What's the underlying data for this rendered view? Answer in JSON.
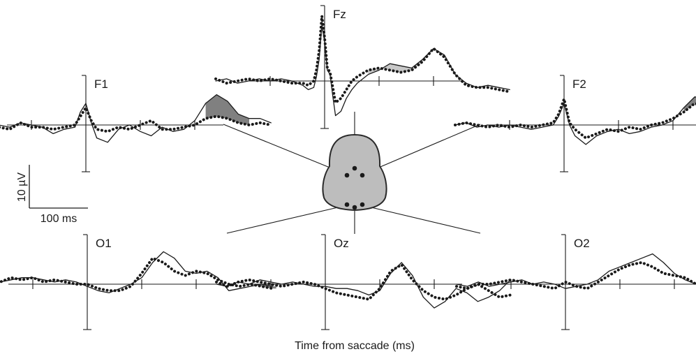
{
  "chart_data": {
    "type": "line",
    "xlabel": "Time from saccade (ms)",
    "scale_bar": {
      "y_label": "10 µV",
      "x_label": "100 ms",
      "y_value_uV": 10,
      "x_value_ms": 100
    },
    "x_range_ms": [
      -200,
      350
    ],
    "tick_ms": [
      -100,
      100,
      200
    ],
    "colors": {
      "line": "#1a1a1a",
      "fill_light": "#c8c8c8",
      "fill_dark": "#808080",
      "head": "#bdbdbd"
    },
    "series_styles": [
      "solid",
      "dotted"
    ],
    "panels": [
      {
        "name": "Fz",
        "fill": "light",
        "shade_range": [
          80,
          220
        ],
        "x": [
          -200,
          -180,
          -160,
          -140,
          -120,
          -100,
          -80,
          -60,
          -40,
          -30,
          -20,
          -15,
          -10,
          -5,
          0,
          5,
          10,
          15,
          20,
          30,
          40,
          50,
          60,
          80,
          100,
          120,
          140,
          160,
          180,
          200,
          220,
          240,
          260,
          280,
          300,
          320,
          340
        ],
        "series": [
          {
            "values": [
              0,
              1,
              -1,
              0,
              1,
              0,
              1,
              0,
              -2,
              -4,
              -3,
              2,
              10,
              26,
              18,
              5,
              3,
              -7,
              -16,
              -14,
              -8,
              -4,
              -1,
              3,
              5,
              8,
              7,
              6,
              10,
              15,
              12,
              3,
              -1,
              -3,
              -2,
              -3,
              -4
            ]
          },
          {
            "values": [
              1,
              -1,
              0,
              1,
              0,
              1,
              0,
              -1,
              -1,
              -2,
              0,
              5,
              14,
              30,
              20,
              6,
              4,
              -3,
              -10,
              -8,
              -4,
              0,
              2,
              5,
              6,
              5,
              4,
              5,
              9,
              15,
              11,
              3,
              -2,
              -3,
              -3,
              -4,
              -5
            ]
          }
        ]
      },
      {
        "name": "F1",
        "fill": "dark",
        "shade_range": [
          220,
          300
        ],
        "x": [
          -200,
          -180,
          -160,
          -140,
          -120,
          -100,
          -80,
          -60,
          -40,
          -20,
          -10,
          0,
          10,
          20,
          40,
          60,
          80,
          100,
          120,
          140,
          160,
          180,
          200,
          220,
          240,
          260,
          280,
          300,
          320,
          340
        ],
        "series": [
          {
            "values": [
              1,
              2,
              0,
              -1,
              1,
              0,
              -1,
              -4,
              -2,
              -1,
              6,
              10,
              1,
              -6,
              -8,
              -2,
              0,
              -3,
              -5,
              -1,
              -3,
              -2,
              2,
              10,
              14,
              11,
              5,
              3,
              3,
              1
            ]
          },
          {
            "values": [
              0,
              1,
              -1,
              -2,
              1,
              -1,
              -1,
              -2,
              -1,
              0,
              4,
              8,
              2,
              -2,
              -3,
              -1,
              -2,
              0,
              2,
              -2,
              -2,
              -1,
              0,
              3,
              4,
              3,
              1,
              0,
              1,
              0
            ]
          }
        ]
      },
      {
        "name": "F2",
        "fill": "dark",
        "shade_range": [
          220,
          300
        ],
        "x": [
          -200,
          -180,
          -160,
          -140,
          -120,
          -100,
          -80,
          -60,
          -40,
          -20,
          -10,
          0,
          10,
          20,
          40,
          60,
          80,
          100,
          120,
          140,
          160,
          180,
          200,
          220,
          240,
          260,
          280,
          300,
          320,
          340
        ],
        "series": [
          {
            "values": [
              0,
              1,
              -1,
              0,
              -1,
              0,
              -1,
              -2,
              -1,
              0,
              4,
              10,
              0,
              -5,
              -9,
              -5,
              -3,
              -2,
              -4,
              -3,
              -1,
              0,
              2,
              8,
              13,
              12,
              8,
              6,
              8,
              6
            ]
          },
          {
            "values": [
              0,
              1,
              0,
              -1,
              0,
              -1,
              0,
              -1,
              0,
              1,
              5,
              12,
              1,
              -2,
              -6,
              -4,
              -2,
              -3,
              -1,
              -2,
              0,
              1,
              3,
              6,
              10,
              8,
              3,
              1,
              2,
              1
            ]
          }
        ]
      },
      {
        "name": "O1",
        "fill": "dark",
        "shade_range": [
          315,
          350
        ],
        "x": [
          -200,
          -180,
          -160,
          -140,
          -120,
          -100,
          -80,
          -60,
          -40,
          -20,
          0,
          20,
          40,
          60,
          80,
          100,
          120,
          140,
          160,
          180,
          200,
          220,
          240,
          260,
          280,
          300,
          320,
          340
        ],
        "series": [
          {
            "values": [
              0,
              -1,
              1,
              2,
              3,
              3,
              2,
              1,
              2,
              1,
              -1,
              -3,
              -4,
              -2,
              0,
              3,
              10,
              15,
              12,
              6,
              5,
              6,
              3,
              -3,
              -2,
              -1,
              0,
              -1
            ]
          },
          {
            "values": [
              -1,
              0,
              1,
              3,
              2,
              3,
              1,
              2,
              1,
              0,
              0,
              -2,
              -3,
              -3,
              -1,
              5,
              12,
              10,
              6,
              4,
              6,
              5,
              2,
              0,
              -1,
              0,
              -1,
              -2
            ]
          }
        ]
      },
      {
        "name": "Oz",
        "fill": "none",
        "shade_range": [],
        "x": [
          -200,
          -180,
          -160,
          -140,
          -120,
          -100,
          -80,
          -60,
          -40,
          -20,
          0,
          20,
          40,
          60,
          80,
          100,
          120,
          140,
          160,
          180,
          200,
          220,
          240,
          260,
          280,
          300,
          320,
          340
        ],
        "series": [
          {
            "values": [
              0,
              -1,
              1,
              0,
              2,
              1,
              0,
              1,
              0,
              -1,
              -1,
              -2,
              -2,
              -3,
              -5,
              -3,
              5,
              10,
              4,
              -6,
              -11,
              -8,
              -2,
              -4,
              -8,
              -6,
              -3,
              2
            ]
          },
          {
            "values": [
              1,
              -1,
              1,
              2,
              1,
              0,
              -1,
              0,
              1,
              0,
              -2,
              -4,
              -5,
              -6,
              -7,
              -2,
              6,
              9,
              2,
              -3,
              -6,
              -7,
              -5,
              -2,
              0,
              -3,
              -6,
              -5
            ]
          }
        ]
      },
      {
        "name": "O2",
        "fill": "dark",
        "shade_range": [
          260,
          350
        ],
        "x": [
          -200,
          -180,
          -160,
          -140,
          -120,
          -100,
          -80,
          -60,
          -40,
          -20,
          0,
          20,
          40,
          60,
          80,
          100,
          120,
          140,
          160,
          180,
          200,
          220,
          240,
          260,
          280,
          300,
          320,
          340
        ],
        "series": [
          {
            "values": [
              0,
              -1,
              1,
              -1,
              0,
              1,
              2,
              0,
              1,
              0,
              -2,
              -1,
              0,
              2,
              6,
              8,
              10,
              12,
              14,
              10,
              5,
              2,
              0,
              -1,
              -2,
              -3,
              -5,
              -3
            ]
          },
          {
            "values": [
              -1,
              -2,
              0,
              0,
              1,
              2,
              1,
              0,
              -1,
              -2,
              1,
              -1,
              -2,
              1,
              4,
              7,
              9,
              10,
              8,
              5,
              4,
              3,
              0,
              -4,
              -7,
              -9,
              -10,
              -11
            ]
          }
        ]
      }
    ]
  },
  "head_map": {
    "electrodes": [
      "Fz",
      "F1",
      "F2",
      "O1",
      "Oz",
      "O2"
    ]
  }
}
